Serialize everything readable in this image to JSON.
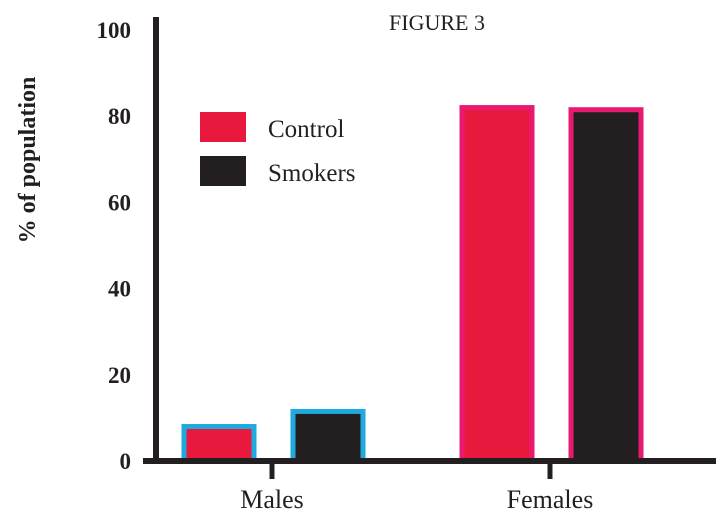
{
  "chart_data": {
    "type": "bar",
    "title": "FIGURE 3",
    "xlabel": "",
    "ylabel": "% of population",
    "categories": [
      "Males",
      "Females"
    ],
    "series": [
      {
        "name": "Control",
        "values": [
          8,
          82
        ]
      },
      {
        "name": "Smokers",
        "values": [
          11.5,
          81.5
        ]
      }
    ],
    "ylim": [
      0,
      100
    ],
    "yticks": [
      "0",
      "20",
      "40",
      "60",
      "80",
      "100"
    ],
    "grid": false,
    "legend_placement": "top-left",
    "colors": {
      "control_fill": "#e8193c",
      "smokers_fill": "#231f20",
      "males_outline": "#1eaadf",
      "females_outline": "#e8196e",
      "axis": "#231f20"
    }
  }
}
